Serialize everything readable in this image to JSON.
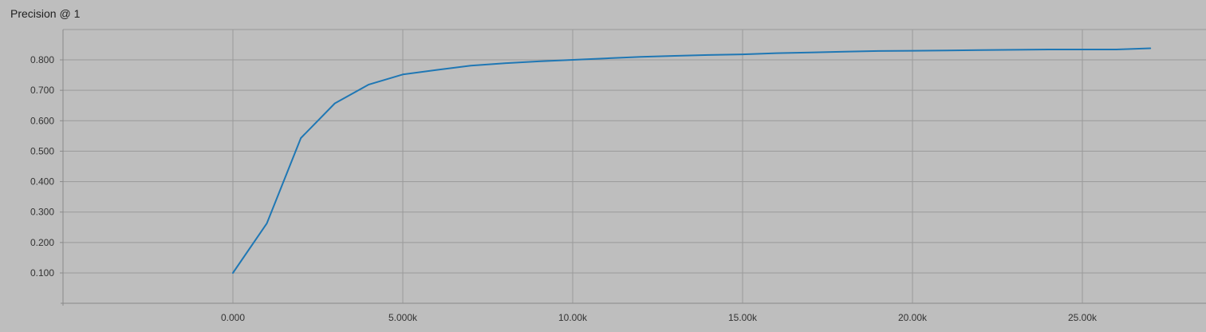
{
  "chart_data": {
    "type": "line",
    "title": "Precision @ 1",
    "xlabel": "",
    "ylabel": "",
    "xlim": [
      -10000,
      27000
    ],
    "ylim": [
      0.0,
      0.9
    ],
    "x_ticks": [
      0,
      5000,
      10000,
      15000,
      20000,
      25000
    ],
    "x_tick_labels": [
      "0.000",
      "5.000k",
      "10.00k",
      "15.00k",
      "20.00k",
      "25.00k"
    ],
    "y_ticks": [
      0.1,
      0.2,
      0.3,
      0.4,
      0.5,
      0.6,
      0.7,
      0.8
    ],
    "y_tick_labels": [
      "0.100",
      "0.200",
      "0.300",
      "0.400",
      "0.500",
      "0.600",
      "0.700",
      "0.800"
    ],
    "grid": true,
    "legend": "none",
    "series": [
      {
        "color": "#1f77b4",
        "x": [
          0,
          1000,
          2000,
          3000,
          4000,
          5000,
          6000,
          7000,
          8000,
          9000,
          10000,
          11000,
          12000,
          13000,
          14000,
          15000,
          16000,
          17000,
          18000,
          19000,
          20000,
          21000,
          22000,
          23000,
          24000,
          25000,
          26000,
          27000
        ],
        "y": [
          0.1,
          0.263,
          0.543,
          0.657,
          0.719,
          0.752,
          0.767,
          0.781,
          0.789,
          0.795,
          0.8,
          0.805,
          0.81,
          0.813,
          0.816,
          0.818,
          0.822,
          0.824,
          0.827,
          0.829,
          0.83,
          0.831,
          0.832,
          0.833,
          0.834,
          0.834,
          0.834,
          0.838
        ]
      }
    ]
  }
}
